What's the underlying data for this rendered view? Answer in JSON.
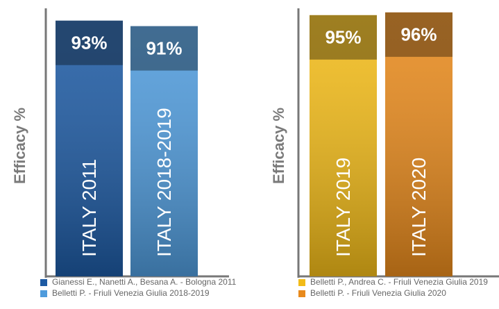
{
  "chart_data": [
    {
      "type": "bar",
      "y_label": "Efficacy %",
      "categories": [
        "ITALY 2011",
        "ITALY 2018-2019"
      ],
      "values": [
        93,
        91
      ],
      "value_labels": [
        "93%",
        "91%"
      ],
      "colors": [
        "#1d5aa3",
        "#4f9bdc"
      ],
      "legend": [
        "Gianessi E., Nanetti A., Besana A. - Bologna 2011",
        "Belletti P. - Friuli Venezia Giulia 2018-2019"
      ],
      "ylim": [
        0,
        100
      ]
    },
    {
      "type": "bar",
      "y_label": "Efficacy %",
      "categories": [
        "ITALY 2019",
        "ITALY 2020"
      ],
      "values": [
        95,
        96
      ],
      "value_labels": [
        "95%",
        "96%"
      ],
      "colors": [
        "#f2bb18",
        "#e88a1c"
      ],
      "legend": [
        "Belletti P., Andrea C. - Friuli Venezia Giulia 2019",
        "Belletti P. - Friuli Venezia Giulia 2020"
      ],
      "ylim": [
        0,
        100
      ]
    }
  ]
}
